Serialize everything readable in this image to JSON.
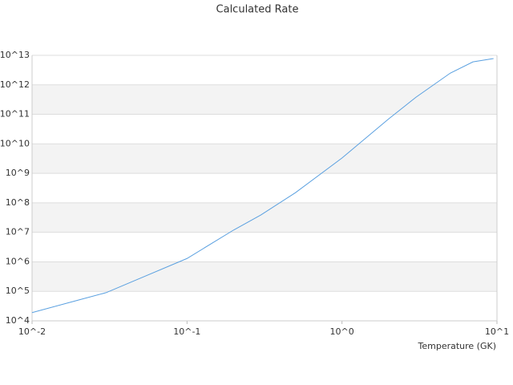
{
  "chart_data": {
    "type": "line",
    "title": "Calculated Rate",
    "xlabel": "Temperature (GK)",
    "log_x": true,
    "log_y": true,
    "grid": true,
    "xlim": [
      0.01,
      10
    ],
    "ylim": [
      10000,
      10000000000000
    ],
    "xticks": [
      {
        "value": 0.01,
        "label": "10^-2"
      },
      {
        "value": 0.1,
        "label": "10^-1"
      },
      {
        "value": 1,
        "label": "10^0"
      },
      {
        "value": 10,
        "label": "10^1"
      }
    ],
    "yticks": [
      {
        "value": 10000,
        "label": "10^4"
      },
      {
        "value": 100000,
        "label": "10^5"
      },
      {
        "value": 1000000,
        "label": "10^6"
      },
      {
        "value": 10000000,
        "label": "10^7"
      },
      {
        "value": 100000000,
        "label": "10^8"
      },
      {
        "value": 1000000000,
        "label": "10^9"
      },
      {
        "value": 10000000000,
        "label": "10^10"
      },
      {
        "value": 100000000000,
        "label": "10^11"
      },
      {
        "value": 1000000000000,
        "label": "10^12"
      },
      {
        "value": 10000000000000,
        "label": "10^13"
      }
    ],
    "x": [
      0.01,
      0.02,
      0.03,
      0.05,
      0.1,
      0.2,
      0.3,
      0.5,
      1,
      2,
      3,
      5,
      7,
      9.5
    ],
    "series": [
      {
        "color": "#5aa0e0",
        "values": [
          19000,
          51000,
          90000,
          280000,
          1300000,
          12000000,
          39000000,
          220000000,
          3300000000,
          70000000000,
          380000000000,
          2500000000000,
          6000000000000,
          7800000000000
        ]
      }
    ]
  }
}
